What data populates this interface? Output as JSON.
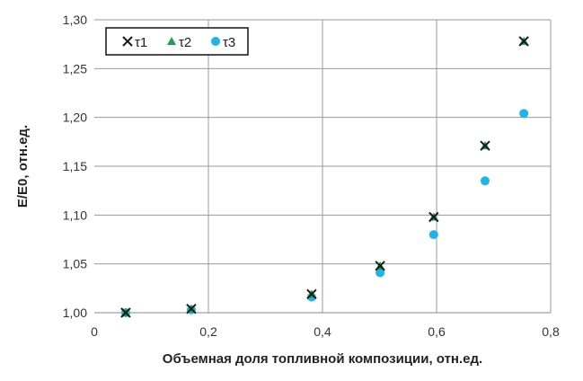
{
  "chart_data": {
    "type": "scatter",
    "title": "",
    "xlabel": "Объемная доля топливной композиции, отн.ед.",
    "ylabel": "E/E0, отн.ед.",
    "xlim": [
      0,
      0.8
    ],
    "ylim": [
      1.0,
      1.3
    ],
    "xticks": [
      "0",
      "0,2",
      "0,4",
      "0,6",
      "0,8"
    ],
    "yticks": [
      "1,00",
      "1,05",
      "1,10",
      "1,15",
      "1,20",
      "1,25",
      "1,30"
    ],
    "grid": true,
    "legend_position": "top-left",
    "x": [
      0.055,
      0.17,
      0.381,
      0.501,
      0.595,
      0.685,
      0.753
    ],
    "series": [
      {
        "name": "τ1",
        "marker": "x",
        "color": "#1a1a1a",
        "values": [
          1.0,
          1.004,
          1.019,
          1.048,
          1.098,
          1.171,
          1.278
        ]
      },
      {
        "name": "τ2",
        "marker": "triangle",
        "color": "#1aa34a",
        "values": [
          1.0,
          1.004,
          1.019,
          1.048,
          1.098,
          1.171,
          1.278
        ]
      },
      {
        "name": "τ3",
        "marker": "circle",
        "color": "#1fb4e8",
        "values": [
          1.0,
          1.003,
          1.016,
          1.041,
          1.08,
          1.135,
          1.204
        ]
      }
    ]
  }
}
